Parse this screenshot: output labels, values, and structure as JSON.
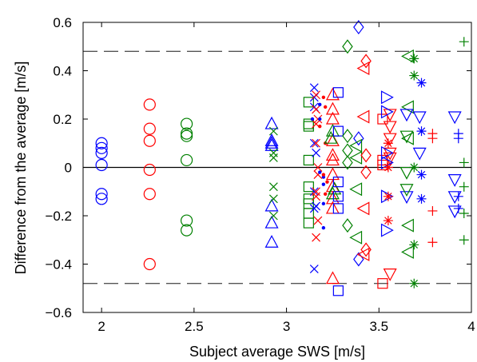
{
  "chart_data": {
    "type": "scatter",
    "title": "",
    "xlabel": "Subject average SWS [m/s]",
    "ylabel": "Difference from the average [m/s]",
    "xlim": [
      1.9,
      4.0
    ],
    "ylim": [
      -0.6,
      0.6
    ],
    "xticks": [
      "2",
      "2.5",
      "3",
      "3.5",
      "4"
    ],
    "yticks": [
      "0.6",
      "0.4",
      "0.2",
      "0",
      "−0.2",
      "−0.4",
      "−0.6"
    ],
    "xtick_values": [
      2,
      2.5,
      3,
      3.5,
      4
    ],
    "ytick_values": [
      0.6,
      0.4,
      0.2,
      0,
      -0.2,
      -0.4,
      -0.6
    ],
    "grid": false,
    "legend": "none",
    "reference_lines": [
      {
        "y": 0.0,
        "style": "solid",
        "color": "#000000"
      },
      {
        "y": 0.48,
        "style": "dashed",
        "color": "#555555"
      },
      {
        "y": -0.48,
        "style": "dashed",
        "color": "#555555"
      }
    ],
    "marker_colors": {
      "blue": "#0000ff",
      "red": "#ff0000",
      "green": "#008000"
    },
    "series": [
      {
        "marker": "circle",
        "color": "#0000ff",
        "x": [
          2.0,
          2.0,
          2.0,
          2.0,
          2.0,
          2.0
        ],
        "y": [
          0.1,
          0.08,
          0.06,
          0.01,
          -0.11,
          -0.13
        ]
      },
      {
        "marker": "circle",
        "color": "#ff0000",
        "x": [
          2.26,
          2.26,
          2.26,
          2.26,
          2.26,
          2.26
        ],
        "y": [
          0.26,
          0.16,
          0.11,
          -0.01,
          -0.11,
          -0.4
        ]
      },
      {
        "marker": "circle",
        "color": "#008000",
        "x": [
          2.46,
          2.46,
          2.46,
          2.46,
          2.46,
          2.46
        ],
        "y": [
          0.18,
          0.14,
          0.13,
          0.03,
          -0.22,
          -0.26
        ]
      },
      {
        "marker": "triangle-up",
        "color": "#0000ff",
        "x": [
          2.92,
          2.92,
          2.92,
          2.92,
          2.92,
          2.92,
          2.92
        ],
        "y": [
          0.18,
          0.11,
          0.1,
          0.09,
          -0.16,
          -0.23,
          -0.31
        ]
      },
      {
        "marker": "x",
        "color": "#008000",
        "x": [
          2.93,
          2.93,
          2.93,
          2.93,
          2.93,
          2.93
        ],
        "y": [
          0.15,
          0.06,
          0.04,
          -0.08,
          -0.2,
          -0.13
        ]
      },
      {
        "marker": "square",
        "color": "#008000",
        "x": [
          3.12,
          3.12,
          3.12,
          3.12,
          3.12,
          3.12,
          3.12,
          3.12,
          3.12
        ],
        "y": [
          0.27,
          0.18,
          0.17,
          0.03,
          -0.08,
          -0.13,
          -0.15,
          -0.19,
          -0.23
        ]
      },
      {
        "marker": "x",
        "color": "#0000ff",
        "x": [
          3.15,
          3.15,
          3.15,
          3.15,
          3.16,
          3.15,
          3.16,
          3.15,
          3.15
        ],
        "y": [
          0.33,
          0.29,
          0.25,
          0.1,
          0.06,
          -0.1,
          -0.16,
          -0.17,
          -0.42
        ]
      },
      {
        "marker": "x",
        "color": "#ff0000",
        "x": [
          3.16,
          3.16,
          3.17,
          3.16,
          3.16,
          3.17,
          3.17,
          3.16,
          3.16,
          3.17,
          3.16
        ],
        "y": [
          0.3,
          0.24,
          0.2,
          0.18,
          0.1,
          0.0,
          -0.03,
          -0.1,
          -0.12,
          -0.22,
          -0.29
        ]
      },
      {
        "marker": "dot",
        "color": "#0000ff",
        "x": [
          3.14,
          3.18,
          3.18,
          3.18,
          3.2,
          3.2,
          3.2,
          3.2
        ],
        "y": [
          0.2,
          0.2,
          0.26,
          -0.02,
          -0.04,
          -0.07,
          -0.15,
          -0.25
        ]
      },
      {
        "marker": "dot",
        "color": "#ff0000",
        "x": [
          3.2,
          3.21,
          3.18,
          3.21,
          3.2,
          3.22,
          3.21
        ],
        "y": [
          0.29,
          0.25,
          0.17,
          0.1,
          -0.03,
          -0.06,
          -0.11
        ]
      },
      {
        "marker": "triangle-up",
        "color": "#ff0000",
        "x": [
          3.25,
          3.25,
          3.25,
          3.25,
          3.25,
          3.25,
          3.25,
          3.25,
          3.25,
          3.25,
          3.25
        ],
        "y": [
          0.3,
          0.24,
          0.2,
          0.11,
          0.05,
          0.03,
          -0.03,
          -0.08,
          -0.13,
          -0.17,
          -0.46
        ]
      },
      {
        "marker": "triangle-up",
        "color": "#008000",
        "x": [
          3.25,
          3.24,
          3.26,
          3.25
        ],
        "y": [
          0.15,
          0.12,
          -0.09,
          -0.11
        ]
      },
      {
        "marker": "square",
        "color": "#0000ff",
        "x": [
          3.28,
          3.28,
          3.28,
          3.28,
          3.28,
          3.28
        ],
        "y": [
          0.31,
          0.15,
          -0.06,
          -0.12,
          -0.17,
          -0.51
        ]
      },
      {
        "marker": "diamond",
        "color": "#008000",
        "x": [
          3.33,
          3.33,
          3.33,
          3.33,
          3.33
        ],
        "y": [
          0.5,
          0.13,
          0.07,
          0.02,
          -0.24
        ]
      },
      {
        "marker": "diamond",
        "color": "#0000ff",
        "x": [
          3.39,
          3.39,
          3.39
        ],
        "y": [
          0.58,
          0.12,
          -0.38
        ]
      },
      {
        "marker": "triangle-left",
        "color": "#008000",
        "x": [
          3.38,
          3.38,
          3.38,
          3.38
        ],
        "y": [
          0.09,
          0.04,
          -0.09,
          -0.29
        ]
      },
      {
        "marker": "triangle-left",
        "color": "#ff0000",
        "x": [
          3.42,
          3.42,
          3.42,
          3.42
        ],
        "y": [
          0.41,
          0.21,
          -0.17,
          -0.36
        ]
      },
      {
        "marker": "diamond",
        "color": "#ff0000",
        "x": [
          3.43,
          3.43,
          3.43,
          3.43
        ],
        "y": [
          0.44,
          0.05,
          -0.02,
          -0.34
        ]
      },
      {
        "marker": "square",
        "color": "#ff0000",
        "x": [
          3.52,
          3.52,
          3.52,
          3.52
        ],
        "y": [
          0.2,
          0.03,
          0.01,
          -0.48
        ]
      },
      {
        "marker": "triangle-down",
        "color": "#ff0000",
        "x": [
          3.56,
          3.56,
          3.56,
          3.56,
          3.56,
          3.56
        ],
        "y": [
          0.22,
          0.17,
          0.12,
          0.06,
          0.04,
          -0.44
        ]
      },
      {
        "marker": "triangle-right",
        "color": "#0000ff",
        "x": [
          3.54,
          3.54,
          3.54,
          3.54,
          3.54,
          3.54
        ],
        "y": [
          0.29,
          0.23,
          0.06,
          0.02,
          -0.12,
          -0.26
        ]
      },
      {
        "marker": "star",
        "color": "#ff0000",
        "x": [
          3.55,
          3.55,
          3.55,
          3.55
        ],
        "y": [
          0.1,
          0.0,
          -0.12,
          -0.22
        ]
      },
      {
        "marker": "triangle-left",
        "color": "#008000",
        "x": [
          3.66,
          3.66,
          3.66,
          3.66,
          3.66
        ],
        "y": [
          0.46,
          0.25,
          0.12,
          -0.24,
          -0.35
        ]
      },
      {
        "marker": "triangle-down",
        "color": "#0000ff",
        "x": [
          3.65,
          3.65
        ],
        "y": [
          0.22,
          -0.12
        ]
      },
      {
        "marker": "triangle-down",
        "color": "#008000",
        "x": [
          3.65,
          3.65,
          3.65
        ],
        "y": [
          0.13,
          -0.02,
          -0.09
        ]
      },
      {
        "marker": "star",
        "color": "#008000",
        "x": [
          3.69,
          3.69,
          3.69,
          3.69,
          3.69
        ],
        "y": [
          0.45,
          0.38,
          0.0,
          -0.32,
          -0.48
        ]
      },
      {
        "marker": "star",
        "color": "#0000ff",
        "x": [
          3.73,
          3.73,
          3.73,
          3.73
        ],
        "y": [
          0.35,
          0.15,
          -0.03,
          -0.13
        ]
      },
      {
        "marker": "triangle-down",
        "color": "#0000ff",
        "x": [
          3.72,
          3.72
        ],
        "y": [
          0.21,
          0.06
        ]
      },
      {
        "marker": "plus",
        "color": "#ff0000",
        "x": [
          3.79,
          3.79,
          3.79,
          3.79
        ],
        "y": [
          0.14,
          0.12,
          -0.18,
          -0.31
        ]
      },
      {
        "marker": "triangle-down",
        "color": "#0000ff",
        "x": [
          3.91,
          3.91,
          3.91,
          3.91
        ],
        "y": [
          0.21,
          -0.05,
          -0.12,
          -0.18
        ]
      },
      {
        "marker": "plus",
        "color": "#0000ff",
        "x": [
          3.93,
          3.93,
          3.93,
          3.93
        ],
        "y": [
          0.14,
          0.12,
          -0.12,
          -0.17
        ]
      },
      {
        "marker": "plus",
        "color": "#008000",
        "x": [
          3.96,
          3.96,
          3.96,
          3.96,
          3.96
        ],
        "y": [
          0.52,
          0.02,
          -0.08,
          -0.19,
          -0.3
        ]
      }
    ]
  }
}
